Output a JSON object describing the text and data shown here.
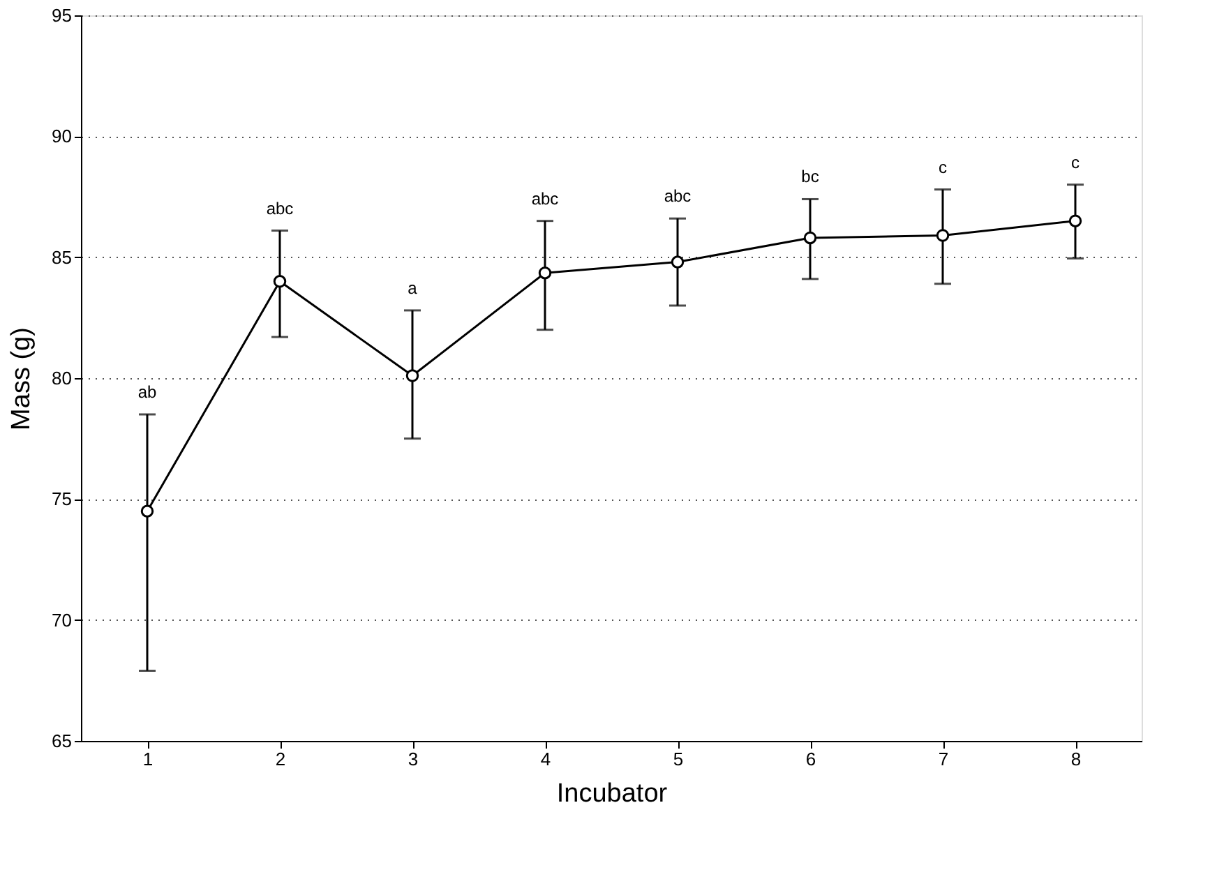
{
  "chart_data": {
    "type": "line",
    "xlabel": "Incubator",
    "ylabel": "Mass (g)",
    "x": [
      1,
      2,
      3,
      4,
      5,
      6,
      7,
      8
    ],
    "series": [
      {
        "color": "#000000",
        "values": [
          74.5,
          84.0,
          80.1,
          84.35,
          84.8,
          85.8,
          85.9,
          86.5
        ],
        "errors": [
          [
            67.9,
            78.5
          ],
          [
            81.7,
            86.1
          ],
          [
            77.5,
            82.8
          ],
          [
            82.0,
            86.5
          ],
          [
            83.0,
            86.6
          ],
          [
            84.1,
            87.4
          ],
          [
            83.9,
            87.8
          ],
          [
            84.95,
            88.0
          ]
        ]
      }
    ],
    "xlim": [
      0.5,
      8.5
    ],
    "xticks": [
      1,
      2,
      3,
      4,
      5,
      6,
      7,
      8
    ],
    "ylim": [
      65,
      95
    ],
    "yticks": [
      65,
      70,
      75,
      80,
      85,
      90,
      95
    ],
    "grid": "y",
    "marker": "circle",
    "line_style": "solid",
    "annotations": [
      {
        "text": "ab",
        "x": 1,
        "y": 78.5
      },
      {
        "text": "abc",
        "x": 2,
        "y": 86.1
      },
      {
        "text": "a",
        "x": 3,
        "y": 82.8
      },
      {
        "text": "abc",
        "x": 4,
        "y": 86.5
      },
      {
        "text": "abc",
        "x": 5,
        "y": 86.6
      },
      {
        "text": "bc",
        "x": 6,
        "y": 87.4
      },
      {
        "text": "c",
        "x": 7,
        "y": 87.8
      },
      {
        "text": "c",
        "x": 8,
        "y": 88.0
      }
    ]
  }
}
